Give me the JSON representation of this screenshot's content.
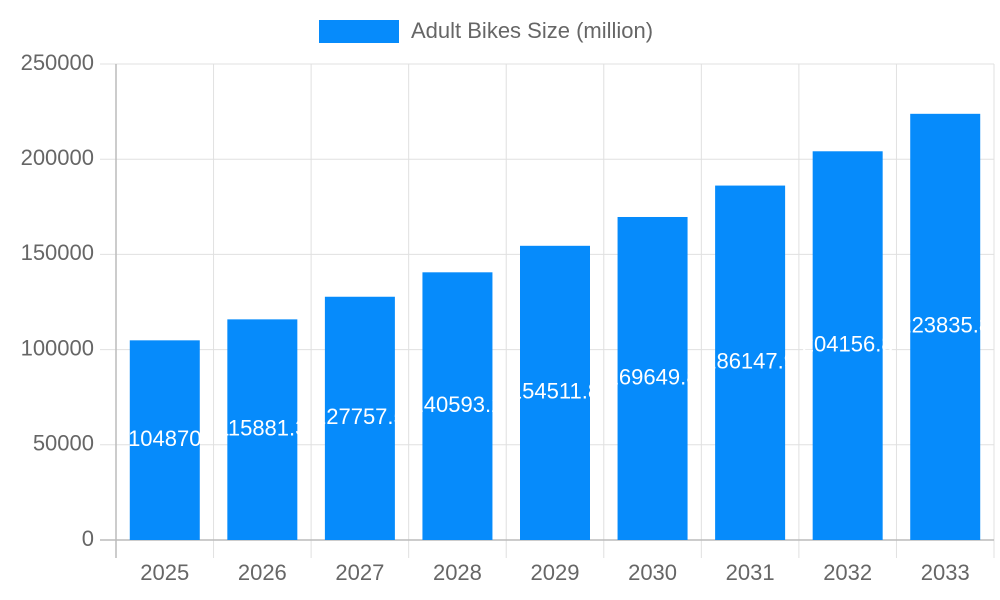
{
  "chart_data": {
    "type": "bar",
    "legend": "Adult Bikes Size (million)",
    "categories": [
      "2025",
      "2026",
      "2027",
      "2028",
      "2029",
      "2030",
      "2031",
      "2032",
      "2033"
    ],
    "values": [
      104870,
      115881.3,
      127757.5,
      140593.2,
      154511.8,
      169649.8,
      186147.9,
      204156.8,
      223835.8
    ],
    "color": "#068bfb",
    "ylim": [
      0,
      250000
    ],
    "yticks": [
      0,
      50000,
      100000,
      150000,
      200000,
      250000
    ],
    "grid": true
  }
}
